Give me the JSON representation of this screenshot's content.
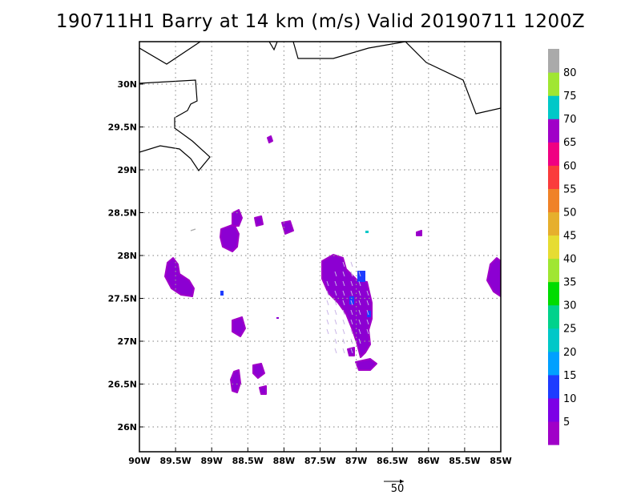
{
  "title": "190711H1 Barry at 14 km (m/s) Valid 20190711 1200Z",
  "map": {
    "lat_labels": [
      "30N",
      "29.5N",
      "29N",
      "28.5N",
      "28N",
      "27.5N",
      "27N",
      "26.5N",
      "26N"
    ],
    "lon_labels": [
      "90W",
      "89.5W",
      "89W",
      "88.5W",
      "88W",
      "87.5W",
      "87W",
      "86.5W",
      "86W",
      "85.5W",
      "85W"
    ],
    "lat_values": [
      30,
      29.5,
      29,
      28.5,
      28,
      27.5,
      27,
      26.5,
      26
    ],
    "lon_values": [
      -90,
      -89.5,
      -89,
      -88.5,
      -88,
      -87.5,
      -87,
      -86.5,
      -86,
      -85.5,
      -85
    ],
    "grid": "dotted",
    "reference_vector_label": "50"
  },
  "colorbar": {
    "labels": [
      "5",
      "10",
      "15",
      "20",
      "25",
      "30",
      "35",
      "40",
      "45",
      "50",
      "55",
      "60",
      "65",
      "70",
      "75",
      "80"
    ],
    "colors": [
      "#a000c8",
      "#7d00e6",
      "#1e3cff",
      "#00a0ff",
      "#00c8c8",
      "#00d28c",
      "#00dc00",
      "#a0e632",
      "#e6dc32",
      "#e6af2d",
      "#f08228",
      "#fa3c3c",
      "#f00082",
      "#a000c8",
      "#00c8c8",
      "#a0e632",
      "#aaaaaa"
    ]
  }
}
